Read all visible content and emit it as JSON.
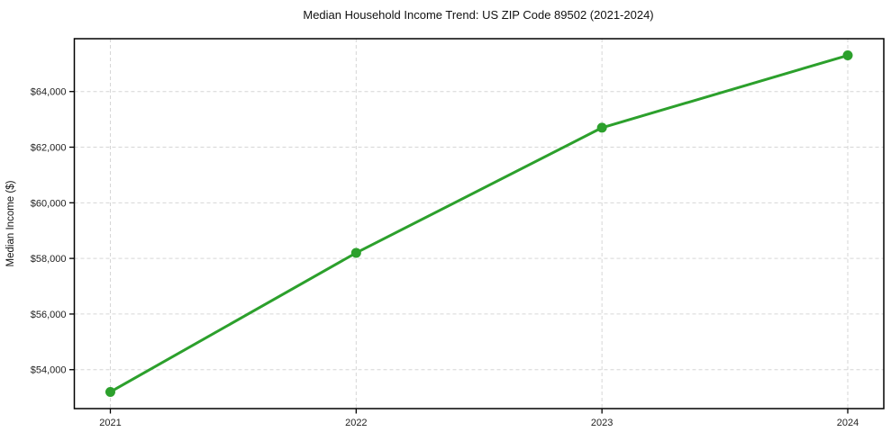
{
  "page": {
    "title": "Median Household Income Trend: US ZIP Code 89502 (2021-2024)"
  },
  "chart_data": {
    "type": "line",
    "title": "Median Household Income Trend: US ZIP Code 89502 (2021-2024)",
    "xlabel": "",
    "ylabel": "Median Income ($)",
    "categories": [
      "2021",
      "2022",
      "2023",
      "2024"
    ],
    "series": [
      {
        "name": "Median Household Income",
        "values": [
          53200,
          58200,
          62700,
          65300
        ]
      }
    ],
    "yticks": [
      54000,
      56000,
      58000,
      60000,
      62000,
      64000
    ],
    "ytick_labels": [
      "$54,000",
      "$56,000",
      "$58,000",
      "$60,000",
      "$62,000",
      "$64,000"
    ],
    "ylim": [
      52600,
      65900
    ],
    "grid": true,
    "grid_style": "dashed",
    "legend_position": "none",
    "colors": {
      "line": "#2ca02c",
      "marker": "#2ca02c",
      "grid": "#d6d6d6",
      "axis": "#000000",
      "background": "#ffffff"
    },
    "marker": "circle",
    "marker_radius": 5.5,
    "line_width": 3
  }
}
